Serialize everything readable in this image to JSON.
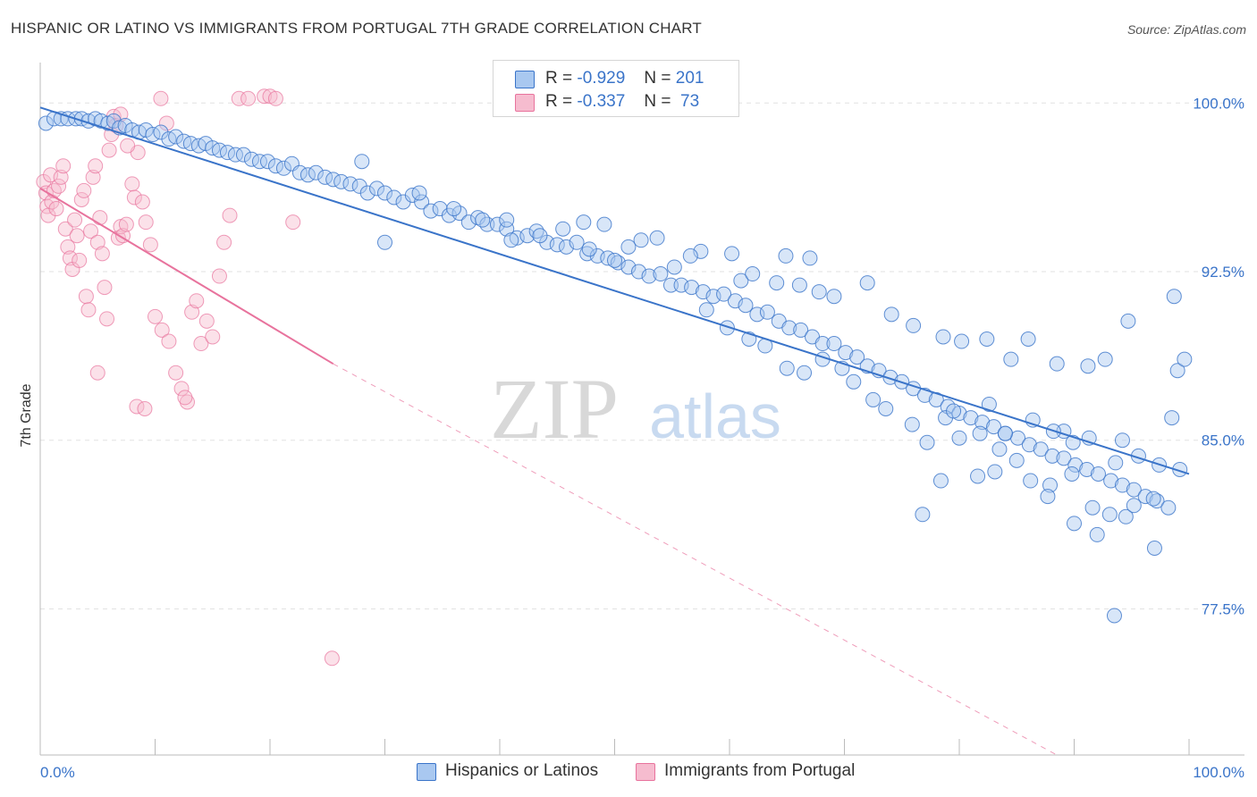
{
  "header": {
    "title": "HISPANIC OR LATINO VS IMMIGRANTS FROM PORTUGAL 7TH GRADE CORRELATION CHART",
    "source": "Source: ZipAtlas.com"
  },
  "watermark": {
    "zip": "ZIP",
    "atlas": "atlas"
  },
  "legend": {
    "r_label": "R =",
    "n_label": "N =",
    "rows": [
      {
        "r": "-0.929",
        "n": "201"
      },
      {
        "r": "-0.337",
        "n": " 73"
      }
    ]
  },
  "chart_data": {
    "type": "scatter",
    "title": "HISPANIC OR LATINO VS IMMIGRANTS FROM PORTUGAL 7TH GRADE CORRELATION CHART",
    "xlabel": "",
    "ylabel": "7th Grade",
    "xlim": [
      0,
      100
    ],
    "ylim": [
      71.0,
      101.8
    ],
    "x_tick_labels": [
      "0.0%",
      "100.0%"
    ],
    "y_tick_labels": [
      "100.0%",
      "92.5%",
      "85.0%",
      "77.5%"
    ],
    "y_ticks": [
      100.0,
      92.5,
      85.0,
      77.5
    ],
    "grid": true,
    "colors": {
      "blue": "#3a74c9",
      "pink": "#e8739d",
      "blue_fill": "#a9c8f0",
      "pink_fill": "#f6bccf"
    },
    "series": [
      {
        "name": "Hispanics or Latinos",
        "trend": {
          "x": [
            0,
            100
          ],
          "y": [
            99.8,
            83.5
          ]
        },
        "points": [
          [
            0.5,
            99.1
          ],
          [
            1.2,
            99.3
          ],
          [
            1.8,
            99.3
          ],
          [
            2.4,
            99.3
          ],
          [
            3.1,
            99.3
          ],
          [
            3.6,
            99.3
          ],
          [
            4.2,
            99.2
          ],
          [
            4.8,
            99.3
          ],
          [
            5.3,
            99.2
          ],
          [
            5.9,
            99.1
          ],
          [
            6.4,
            99.2
          ],
          [
            6.9,
            98.9
          ],
          [
            7.4,
            99.0
          ],
          [
            8.0,
            98.8
          ],
          [
            8.6,
            98.7
          ],
          [
            9.2,
            98.8
          ],
          [
            9.8,
            98.6
          ],
          [
            10.5,
            98.7
          ],
          [
            11.2,
            98.4
          ],
          [
            11.8,
            98.5
          ],
          [
            12.5,
            98.3
          ],
          [
            13.1,
            98.2
          ],
          [
            13.8,
            98.1
          ],
          [
            14.4,
            98.2
          ],
          [
            15.0,
            98.0
          ],
          [
            15.6,
            97.9
          ],
          [
            16.3,
            97.8
          ],
          [
            17.0,
            97.7
          ],
          [
            17.7,
            97.7
          ],
          [
            18.4,
            97.5
          ],
          [
            19.1,
            97.4
          ],
          [
            19.8,
            97.4
          ],
          [
            20.5,
            97.2
          ],
          [
            21.2,
            97.1
          ],
          [
            21.9,
            97.3
          ],
          [
            22.6,
            96.9
          ],
          [
            23.3,
            96.8
          ],
          [
            24.0,
            96.9
          ],
          [
            24.8,
            96.7
          ],
          [
            25.5,
            96.6
          ],
          [
            26.2,
            96.5
          ],
          [
            27.0,
            96.4
          ],
          [
            27.8,
            96.3
          ],
          [
            28.5,
            96.0
          ],
          [
            29.3,
            96.2
          ],
          [
            30.0,
            96.0
          ],
          [
            30.8,
            95.8
          ],
          [
            31.6,
            95.6
          ],
          [
            32.4,
            95.9
          ],
          [
            33.2,
            95.6
          ],
          [
            34.0,
            95.2
          ],
          [
            34.8,
            95.3
          ],
          [
            35.6,
            95.0
          ],
          [
            36.5,
            95.1
          ],
          [
            37.3,
            94.7
          ],
          [
            38.1,
            94.9
          ],
          [
            38.9,
            94.6
          ],
          [
            39.8,
            94.6
          ],
          [
            40.6,
            94.4
          ],
          [
            41.5,
            94.0
          ],
          [
            42.4,
            94.1
          ],
          [
            43.2,
            94.3
          ],
          [
            44.1,
            93.8
          ],
          [
            45.0,
            93.7
          ],
          [
            45.8,
            93.6
          ],
          [
            46.7,
            93.8
          ],
          [
            47.6,
            93.3
          ],
          [
            48.5,
            93.2
          ],
          [
            49.4,
            93.1
          ],
          [
            50.3,
            92.9
          ],
          [
            51.2,
            92.7
          ],
          [
            52.1,
            92.5
          ],
          [
            53.0,
            92.3
          ],
          [
            54.0,
            92.4
          ],
          [
            54.9,
            91.9
          ],
          [
            55.8,
            91.9
          ],
          [
            56.7,
            91.8
          ],
          [
            57.7,
            91.6
          ],
          [
            58.6,
            91.4
          ],
          [
            59.5,
            91.5
          ],
          [
            60.5,
            91.2
          ],
          [
            61.4,
            91.0
          ],
          [
            62.4,
            90.6
          ],
          [
            63.3,
            90.7
          ],
          [
            64.3,
            90.3
          ],
          [
            65.2,
            90.0
          ],
          [
            66.2,
            89.9
          ],
          [
            67.2,
            89.6
          ],
          [
            68.1,
            89.3
          ],
          [
            69.1,
            89.3
          ],
          [
            70.1,
            88.9
          ],
          [
            71.1,
            88.7
          ],
          [
            72.0,
            88.3
          ],
          [
            73.0,
            88.1
          ],
          [
            74.0,
            87.8
          ],
          [
            75.0,
            87.6
          ],
          [
            76.0,
            87.3
          ],
          [
            77.0,
            87.0
          ],
          [
            78.0,
            86.8
          ],
          [
            79.0,
            86.5
          ],
          [
            80.0,
            86.2
          ],
          [
            81.0,
            86.0
          ],
          [
            82.0,
            85.8
          ],
          [
            83.0,
            85.6
          ],
          [
            84.0,
            85.3
          ],
          [
            85.1,
            85.1
          ],
          [
            86.1,
            84.8
          ],
          [
            87.1,
            84.6
          ],
          [
            88.1,
            84.3
          ],
          [
            89.1,
            84.2
          ],
          [
            90.1,
            83.9
          ],
          [
            91.1,
            83.7
          ],
          [
            92.1,
            83.5
          ],
          [
            93.2,
            83.2
          ],
          [
            94.2,
            83.0
          ],
          [
            95.2,
            82.8
          ],
          [
            96.2,
            82.5
          ],
          [
            97.2,
            82.3
          ],
          [
            98.2,
            82.0
          ],
          [
            99.2,
            83.7
          ],
          [
            28.0,
            97.4
          ],
          [
            33.0,
            96.0
          ],
          [
            36.0,
            95.3
          ],
          [
            40.6,
            94.8
          ],
          [
            43.5,
            94.1
          ],
          [
            47.8,
            93.5
          ],
          [
            51.2,
            93.6
          ],
          [
            57.5,
            93.4
          ],
          [
            61.0,
            92.1
          ],
          [
            64.1,
            92.0
          ],
          [
            66.1,
            91.9
          ],
          [
            67.8,
            91.6
          ],
          [
            69.1,
            91.4
          ],
          [
            72.0,
            92.0
          ],
          [
            74.1,
            90.6
          ],
          [
            76.0,
            90.1
          ],
          [
            78.6,
            89.6
          ],
          [
            80.2,
            89.4
          ],
          [
            82.4,
            89.5
          ],
          [
            84.5,
            88.6
          ],
          [
            86.0,
            89.5
          ],
          [
            88.5,
            88.4
          ],
          [
            89.1,
            85.4
          ],
          [
            91.2,
            88.3
          ],
          [
            92.7,
            88.6
          ],
          [
            94.7,
            90.3
          ],
          [
            98.7,
            91.4
          ],
          [
            99.0,
            88.1
          ],
          [
            99.6,
            88.6
          ],
          [
            64.9,
            93.2
          ],
          [
            67.0,
            93.1
          ],
          [
            55.2,
            92.7
          ],
          [
            56.6,
            93.2
          ],
          [
            60.2,
            93.3
          ],
          [
            62.0,
            92.4
          ],
          [
            53.7,
            94.0
          ],
          [
            52.3,
            93.9
          ],
          [
            50.0,
            93.0
          ],
          [
            47.3,
            94.7
          ],
          [
            45.5,
            94.4
          ],
          [
            41.0,
            93.9
          ],
          [
            38.5,
            94.8
          ],
          [
            30.0,
            93.8
          ],
          [
            49.1,
            94.6
          ],
          [
            58.0,
            90.8
          ],
          [
            59.8,
            90.0
          ],
          [
            61.7,
            89.5
          ],
          [
            63.1,
            89.2
          ],
          [
            65.0,
            88.2
          ],
          [
            66.5,
            88.0
          ],
          [
            68.1,
            88.6
          ],
          [
            69.8,
            88.2
          ],
          [
            70.8,
            87.6
          ],
          [
            72.5,
            86.8
          ],
          [
            73.6,
            86.4
          ],
          [
            75.9,
            85.7
          ],
          [
            77.2,
            84.9
          ],
          [
            78.8,
            86.0
          ],
          [
            80.0,
            85.1
          ],
          [
            81.8,
            85.3
          ],
          [
            83.5,
            84.6
          ],
          [
            85.0,
            84.1
          ],
          [
            86.2,
            83.2
          ],
          [
            87.9,
            83.0
          ],
          [
            89.8,
            83.5
          ],
          [
            91.6,
            82.0
          ],
          [
            93.1,
            81.7
          ],
          [
            94.5,
            81.6
          ],
          [
            95.2,
            82.1
          ],
          [
            96.9,
            82.4
          ],
          [
            76.8,
            81.7
          ],
          [
            81.6,
            83.4
          ],
          [
            87.7,
            82.5
          ],
          [
            90.0,
            81.3
          ],
          [
            92.0,
            80.8
          ],
          [
            93.5,
            77.2
          ],
          [
            97.0,
            80.2
          ],
          [
            98.5,
            86.0
          ],
          [
            94.2,
            85.0
          ],
          [
            79.5,
            86.3
          ],
          [
            82.6,
            86.6
          ],
          [
            84.0,
            85.3
          ],
          [
            86.4,
            85.9
          ],
          [
            88.2,
            85.4
          ],
          [
            89.9,
            84.9
          ],
          [
            91.3,
            85.1
          ],
          [
            93.6,
            84.0
          ],
          [
            95.6,
            84.3
          ],
          [
            97.4,
            83.9
          ],
          [
            78.4,
            83.2
          ],
          [
            83.1,
            83.6
          ]
        ]
      },
      {
        "name": "Immigrants from Portugal",
        "trend": {
          "x": [
            0,
            25.5
          ],
          "y": [
            96.2,
            88.4
          ]
        },
        "trend_dashed": {
          "x": [
            25.5,
            88.5
          ],
          "y": [
            88.4,
            71.0
          ]
        },
        "points": [
          [
            0.3,
            96.5
          ],
          [
            0.5,
            96.0
          ],
          [
            0.6,
            95.4
          ],
          [
            0.7,
            95.0
          ],
          [
            0.9,
            96.8
          ],
          [
            1.0,
            95.6
          ],
          [
            1.2,
            96.1
          ],
          [
            1.4,
            95.3
          ],
          [
            1.6,
            96.3
          ],
          [
            1.8,
            96.7
          ],
          [
            2.0,
            97.2
          ],
          [
            2.2,
            94.4
          ],
          [
            2.4,
            93.6
          ],
          [
            2.6,
            93.1
          ],
          [
            2.8,
            92.6
          ],
          [
            3.0,
            94.8
          ],
          [
            3.2,
            94.1
          ],
          [
            3.4,
            93.0
          ],
          [
            3.6,
            95.7
          ],
          [
            3.8,
            96.1
          ],
          [
            4.0,
            91.4
          ],
          [
            4.2,
            90.8
          ],
          [
            4.4,
            94.3
          ],
          [
            4.6,
            96.7
          ],
          [
            4.8,
            97.2
          ],
          [
            5.0,
            93.8
          ],
          [
            5.2,
            94.9
          ],
          [
            5.4,
            93.3
          ],
          [
            5.6,
            91.8
          ],
          [
            5.8,
            90.4
          ],
          [
            6.0,
            97.9
          ],
          [
            6.2,
            98.6
          ],
          [
            6.4,
            99.4
          ],
          [
            6.6,
            99.0
          ],
          [
            6.8,
            94.0
          ],
          [
            7.0,
            94.5
          ],
          [
            7.2,
            94.1
          ],
          [
            7.5,
            94.6
          ],
          [
            8.0,
            96.4
          ],
          [
            8.2,
            95.8
          ],
          [
            8.5,
            97.8
          ],
          [
            8.9,
            95.6
          ],
          [
            9.2,
            94.7
          ],
          [
            9.6,
            93.7
          ],
          [
            10.0,
            90.5
          ],
          [
            10.6,
            89.9
          ],
          [
            11.2,
            89.4
          ],
          [
            11.8,
            88.0
          ],
          [
            12.3,
            87.3
          ],
          [
            12.8,
            86.7
          ],
          [
            13.2,
            90.7
          ],
          [
            13.6,
            91.2
          ],
          [
            14.0,
            89.3
          ],
          [
            14.5,
            90.3
          ],
          [
            15.0,
            89.6
          ],
          [
            15.6,
            92.3
          ],
          [
            16.0,
            93.8
          ],
          [
            16.5,
            95.0
          ],
          [
            17.3,
            100.2
          ],
          [
            18.1,
            100.2
          ],
          [
            19.5,
            100.3
          ],
          [
            20.0,
            100.3
          ],
          [
            20.5,
            100.2
          ],
          [
            22.0,
            94.7
          ],
          [
            10.5,
            100.2
          ],
          [
            11.0,
            99.1
          ],
          [
            7.0,
            99.5
          ],
          [
            7.6,
            98.1
          ],
          [
            8.4,
            86.5
          ],
          [
            9.1,
            86.4
          ],
          [
            12.6,
            86.9
          ],
          [
            25.4,
            75.3
          ],
          [
            5.0,
            88.0
          ]
        ]
      }
    ]
  },
  "bottom_legend": [
    "Hispanics or Latinos",
    "Immigrants from Portugal"
  ]
}
